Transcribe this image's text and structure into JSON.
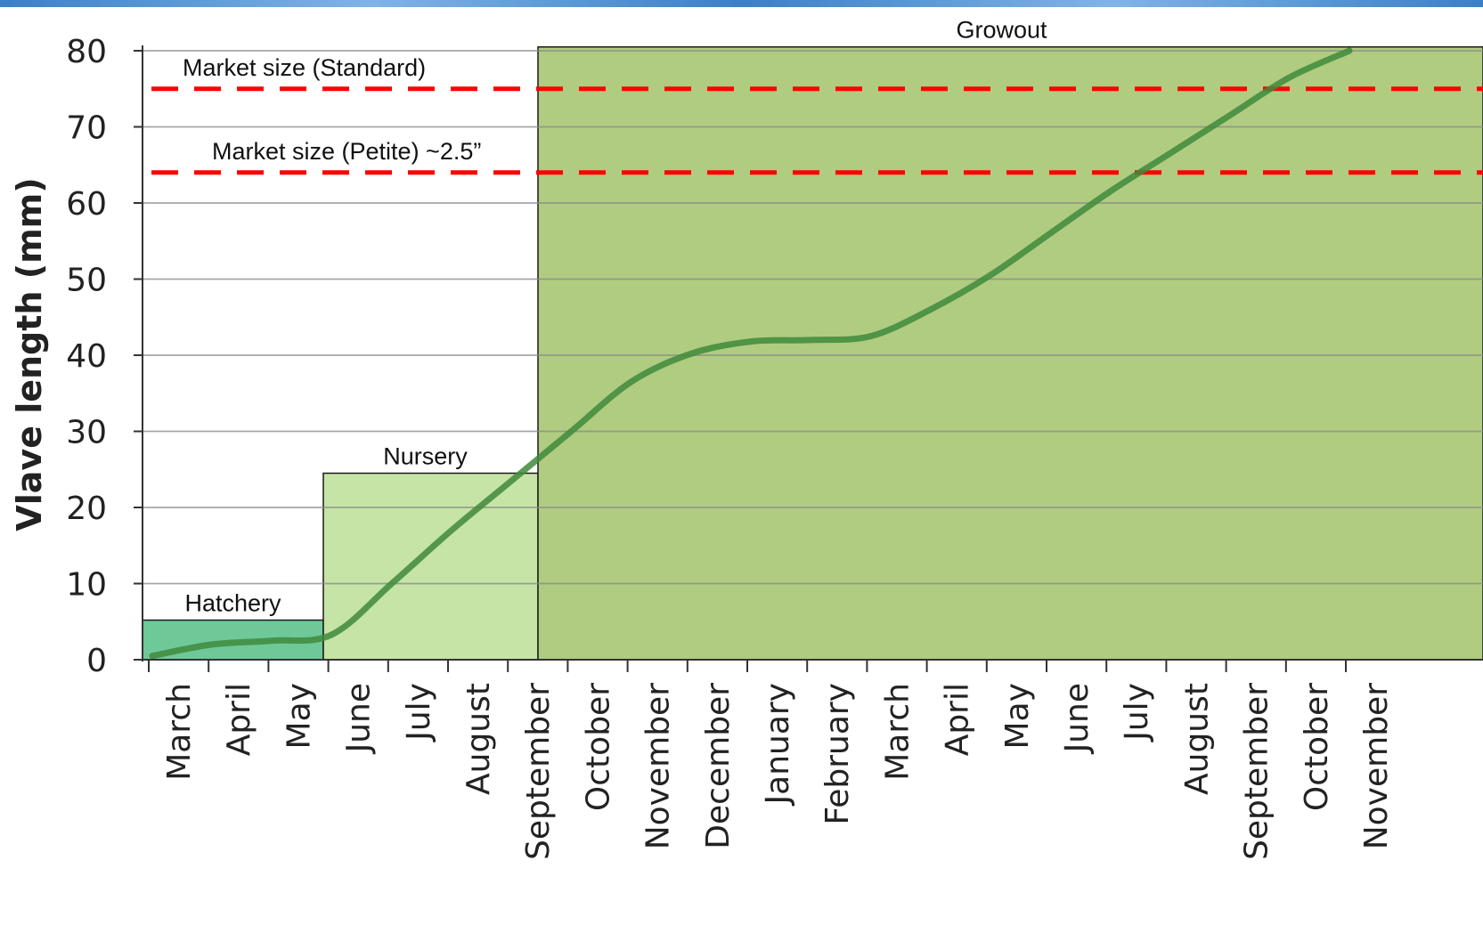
{
  "theme": {
    "band_color": "#3d7fc6",
    "band_highlight": "#7fb4e6",
    "grid_color": "#888888",
    "axis_color": "#333333",
    "curve_color": "#3f8a3c",
    "ref_line_color": "#ff0000"
  },
  "chart_data": {
    "type": "line",
    "title": "",
    "xlabel": "",
    "ylabel": "Vlave length (mm)",
    "ylim": [
      0,
      80
    ],
    "yticks": [
      "0",
      "10",
      "20",
      "30",
      "40",
      "50",
      "60",
      "70",
      "80"
    ],
    "grid": true,
    "categories": [
      "March",
      "April",
      "May",
      "June",
      "July",
      "August",
      "September",
      "October",
      "November",
      "December",
      "January",
      "February",
      "March",
      "April",
      "May",
      "June",
      "July",
      "August",
      "September",
      "October",
      "November"
    ],
    "series": [
      {
        "values": [
          0.5,
          2.0,
          2.5,
          3.3,
          10.0,
          17.0,
          23.5,
          30.0,
          36.5,
          40.2,
          41.8,
          42.0,
          42.5,
          46.0,
          50.5,
          56.0,
          61.5,
          66.5,
          71.5,
          76.5,
          80.0
        ]
      }
    ],
    "stages": [
      {
        "label": "Hatchery",
        "start_index": 0,
        "end_index": 3,
        "height": 5.2,
        "color": "#6ec898"
      },
      {
        "label": "Nursery",
        "start_index": 3,
        "end_index": 6,
        "height": 24.5,
        "color": "#c6e4a6"
      },
      {
        "label": "Growout",
        "start_index": 6,
        "end_index": 21,
        "height": 80.5,
        "color": "#b0cc80"
      }
    ],
    "reference_lines": [
      {
        "label": "Market size (Standard)",
        "value": 75.0
      },
      {
        "label": "Market size (Petite) ~2.5”",
        "value": 64.0
      }
    ]
  }
}
